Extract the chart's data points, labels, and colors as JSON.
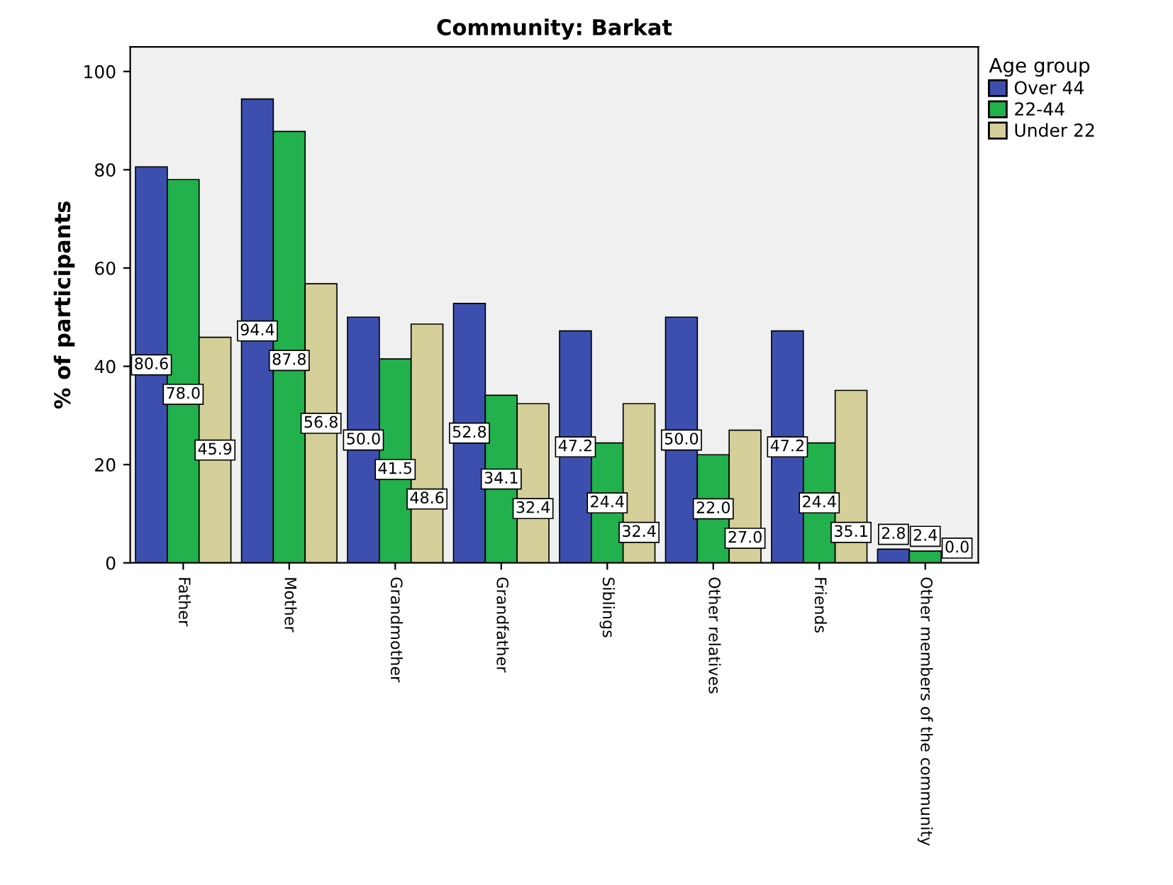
{
  "chart_data": {
    "type": "bar",
    "title": "Community: Barkat",
    "ylabel": "% of participants",
    "legend_title": "Age group",
    "categories": [
      "Father",
      "Mother",
      "Grandmother",
      "Grandfather",
      "Siblings",
      "Other relatives",
      "Friends",
      "Other members of the community"
    ],
    "series": [
      {
        "name": "Over 44",
        "color": "#3d4fae",
        "values": [
          80.6,
          94.4,
          50.0,
          52.8,
          47.2,
          50.0,
          47.2,
          2.8
        ],
        "value_labels": [
          "80.6",
          "94.4",
          "50.0",
          "52.8",
          "47.2",
          "50.0",
          "47.2",
          "2.8"
        ]
      },
      {
        "name": "22-44",
        "color": "#22b14c",
        "values": [
          78.0,
          87.8,
          41.5,
          34.1,
          24.4,
          22.0,
          24.4,
          2.4
        ],
        "value_labels": [
          "78.0",
          "87.8",
          "41.5",
          "34.1",
          "24.4",
          "22.0",
          "24.4",
          "2.4"
        ]
      },
      {
        "name": "Under 22",
        "color": "#d5cf99",
        "values": [
          45.9,
          56.8,
          48.6,
          32.4,
          32.4,
          27.0,
          35.1,
          0.0
        ],
        "value_labels": [
          "45.9",
          "56.8",
          "48.6",
          "32.4",
          "32.4",
          "27.0",
          "35.1",
          "0.0"
        ]
      }
    ],
    "ylim": [
      0,
      105
    ],
    "yticks": [
      0,
      20,
      40,
      60,
      80,
      100
    ],
    "grid": false,
    "legend": "top right"
  }
}
